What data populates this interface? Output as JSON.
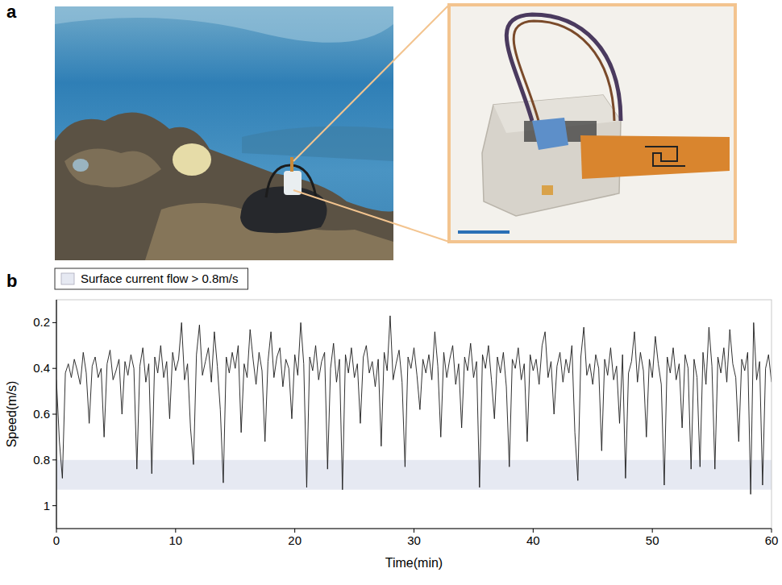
{
  "figure": {
    "panel_labels": [
      "a",
      "b"
    ]
  },
  "chart_data": {
    "type": "line",
    "x_label": "Time(min)",
    "y_label": "Speed(m/s)",
    "xlim": [
      0,
      60
    ],
    "xticks": [
      0,
      10,
      20,
      30,
      40,
      50,
      60
    ],
    "ylim": [
      1.1,
      0.1
    ],
    "yticks": [
      0.2,
      0.4,
      0.6,
      0.8,
      1
    ],
    "color": "#1a1a1a",
    "legend": "top-left",
    "bands": [
      {
        "label": "Surface current flow > 0.8m/s",
        "range": [
          0.8,
          0.93
        ],
        "color": "#e6e9f2"
      }
    ],
    "x": [
      0,
      0.25,
      0.5,
      0.75,
      1,
      1.25,
      1.5,
      1.75,
      2,
      2.25,
      2.5,
      2.75,
      3,
      3.25,
      3.5,
      3.75,
      4,
      4.25,
      4.5,
      4.75,
      5,
      5.25,
      5.5,
      5.75,
      6,
      6.25,
      6.5,
      6.75,
      7,
      7.25,
      7.5,
      7.75,
      8,
      8.25,
      8.5,
      8.75,
      9,
      9.25,
      9.5,
      9.75,
      10,
      10.25,
      10.5,
      10.75,
      11,
      11.25,
      11.5,
      11.75,
      12,
      12.25,
      12.5,
      12.75,
      13,
      13.25,
      13.5,
      13.75,
      14,
      14.25,
      14.5,
      14.75,
      15,
      15.25,
      15.5,
      15.75,
      16,
      16.25,
      16.5,
      16.75,
      17,
      17.25,
      17.5,
      17.75,
      18,
      18.25,
      18.5,
      18.75,
      19,
      19.25,
      19.5,
      19.75,
      20,
      20.25,
      20.5,
      20.75,
      21,
      21.25,
      21.5,
      21.75,
      22,
      22.25,
      22.5,
      22.75,
      23,
      23.25,
      23.5,
      23.75,
      24,
      24.25,
      24.5,
      24.75,
      25,
      25.25,
      25.5,
      25.75,
      26,
      26.25,
      26.5,
      26.75,
      27,
      27.25,
      27.5,
      27.75,
      28,
      28.25,
      28.5,
      28.75,
      29,
      29.25,
      29.5,
      29.75,
      30,
      30.25,
      30.5,
      30.75,
      31,
      31.25,
      31.5,
      31.75,
      32,
      32.25,
      32.5,
      32.75,
      33,
      33.25,
      33.5,
      33.75,
      34,
      34.25,
      34.5,
      34.75,
      35,
      35.25,
      35.5,
      35.75,
      36,
      36.25,
      36.5,
      36.75,
      37,
      37.25,
      37.5,
      37.75,
      38,
      38.25,
      38.5,
      38.75,
      39,
      39.25,
      39.5,
      39.75,
      40,
      40.25,
      40.5,
      40.75,
      41,
      41.25,
      41.5,
      41.75,
      42,
      42.25,
      42.5,
      42.75,
      43,
      43.25,
      43.5,
      43.75,
      44,
      44.25,
      44.5,
      44.75,
      45,
      45.25,
      45.5,
      45.75,
      46,
      46.25,
      46.5,
      46.75,
      47,
      47.25,
      47.5,
      47.75,
      48,
      48.25,
      48.5,
      48.75,
      49,
      49.25,
      49.5,
      49.75,
      50,
      50.25,
      50.5,
      50.75,
      51,
      51.25,
      51.5,
      51.75,
      52,
      52.25,
      52.5,
      52.75,
      53,
      53.25,
      53.5,
      53.75,
      54,
      54.25,
      54.5,
      54.75,
      55,
      55.25,
      55.5,
      55.75,
      56,
      56.25,
      56.5,
      56.75,
      57,
      57.25,
      57.5,
      57.75,
      58,
      58.25,
      58.5,
      58.75,
      59,
      59.25,
      59.5,
      59.75,
      60
    ],
    "values": [
      0.45,
      0.72,
      0.88,
      0.42,
      0.38,
      0.44,
      0.36,
      0.41,
      0.47,
      0.33,
      0.42,
      0.64,
      0.39,
      0.35,
      0.44,
      0.4,
      0.7,
      0.38,
      0.32,
      0.45,
      0.41,
      0.36,
      0.6,
      0.37,
      0.43,
      0.34,
      0.4,
      0.84,
      0.39,
      0.31,
      0.46,
      0.38,
      0.86,
      0.35,
      0.42,
      0.3,
      0.44,
      0.37,
      0.62,
      0.33,
      0.41,
      0.36,
      0.2,
      0.45,
      0.38,
      0.66,
      0.82,
      0.34,
      0.21,
      0.43,
      0.37,
      0.31,
      0.46,
      0.24,
      0.39,
      0.58,
      0.9,
      0.35,
      0.42,
      0.33,
      0.4,
      0.3,
      0.68,
      0.38,
      0.44,
      0.23,
      0.36,
      0.47,
      0.33,
      0.41,
      0.72,
      0.37,
      0.24,
      0.44,
      0.35,
      0.31,
      0.48,
      0.36,
      0.4,
      0.62,
      0.34,
      0.43,
      0.2,
      0.38,
      0.92,
      0.35,
      0.41,
      0.3,
      0.45,
      0.37,
      0.33,
      0.84,
      0.4,
      0.29,
      0.46,
      0.36,
      0.93,
      0.34,
      0.42,
      0.31,
      0.44,
      0.38,
      0.64,
      0.35,
      0.3,
      0.42,
      0.37,
      0.48,
      0.36,
      0.74,
      0.33,
      0.41,
      0.17,
      0.45,
      0.38,
      0.32,
      0.46,
      0.83,
      0.35,
      0.4,
      0.31,
      0.43,
      0.58,
      0.36,
      0.42,
      0.34,
      0.45,
      0.24,
      0.39,
      0.7,
      0.33,
      0.44,
      0.36,
      0.3,
      0.47,
      0.38,
      0.66,
      0.35,
      0.41,
      0.29,
      0.44,
      0.37,
      0.92,
      0.34,
      0.4,
      0.3,
      0.45,
      0.62,
      0.35,
      0.42,
      0.33,
      0.48,
      0.83,
      0.36,
      0.4,
      0.31,
      0.45,
      0.38,
      0.72,
      0.34,
      0.41,
      0.36,
      0.47,
      0.3,
      0.24,
      0.44,
      0.37,
      0.6,
      0.39,
      0.33,
      0.46,
      0.36,
      0.42,
      0.3,
      0.68,
      0.89,
      0.35,
      0.22,
      0.43,
      0.38,
      0.47,
      0.34,
      0.4,
      0.76,
      0.36,
      0.43,
      0.31,
      0.45,
      0.39,
      0.64,
      0.34,
      0.88,
      0.42,
      0.37,
      0.24,
      0.46,
      0.33,
      0.41,
      0.7,
      0.36,
      0.44,
      0.26,
      0.38,
      0.47,
      0.91,
      0.35,
      0.42,
      0.31,
      0.45,
      0.38,
      0.66,
      0.34,
      0.4,
      0.84,
      0.36,
      0.44,
      0.83,
      0.33,
      0.47,
      0.22,
      0.39,
      0.84,
      0.35,
      0.42,
      0.31,
      0.46,
      0.23,
      0.38,
      0.44,
      0.72,
      0.36,
      0.41,
      0.33,
      0.95,
      0.2,
      0.45,
      0.37,
      0.91,
      0.4,
      0.34,
      0.46
    ]
  }
}
